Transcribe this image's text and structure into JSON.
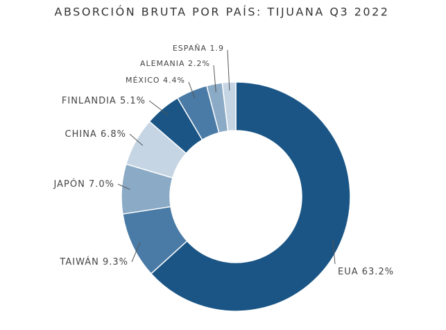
{
  "chart_data": {
    "type": "donut",
    "title": "ABSORCIÓN BRUTA POR PAÍS: TIJUANA Q3 2022",
    "categories": [
      "EUA",
      "TAIWÁN",
      "JAPÓN",
      "CHINA",
      "FINLANDIA",
      "MÉXICO",
      "ALEMANIA",
      "ESPAÑA"
    ],
    "values": [
      63.2,
      9.3,
      7.0,
      6.8,
      5.1,
      4.4,
      2.2,
      1.9
    ],
    "value_labels": [
      "63.2%",
      "9.3%",
      "7.0%",
      "6.8%",
      "5.1%",
      "4.4%",
      "2.2%",
      "1.9"
    ],
    "colors": [
      "#1a5585",
      "#4a7ba6",
      "#8aaac5",
      "#c5d5e3",
      "#1a5585",
      "#4a7ba6",
      "#8aaac5",
      "#c5d5e3"
    ]
  }
}
